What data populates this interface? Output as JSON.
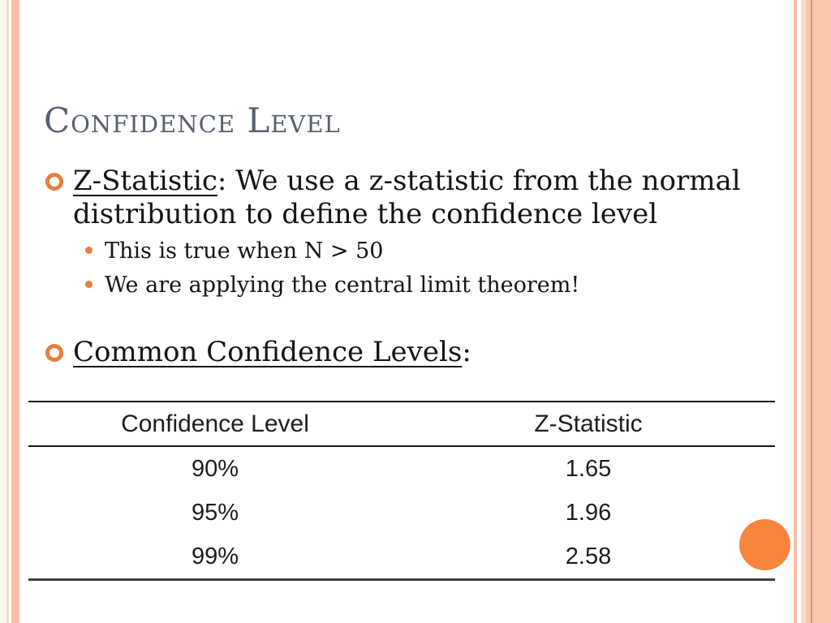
{
  "slide": {
    "title": "Confidence Level",
    "bullets": [
      {
        "lead": "Z-Statistic",
        "rest": ": We use a z-statistic from the normal distribution to define the confidence level",
        "sub": [
          "This is true when N > 50",
          "We are applying the central limit theorem!"
        ]
      },
      {
        "lead": "Common Confidence Levels",
        "rest": ":",
        "sub": []
      }
    ],
    "table": {
      "headers": [
        "Confidence Level",
        "Z-Statistic"
      ],
      "rows": [
        [
          "90%",
          "1.65"
        ],
        [
          "95%",
          "1.96"
        ],
        [
          "99%",
          "2.58"
        ]
      ]
    },
    "colors": {
      "accent_orange": "#E87E3C",
      "decoration_circle_orange": "#F8853C",
      "title_slate": "#57606E",
      "border_salmon": "#F9C0A6",
      "border_salmon_dark": "#E99166",
      "table_rule_dark": "#1A1A1A"
    }
  }
}
